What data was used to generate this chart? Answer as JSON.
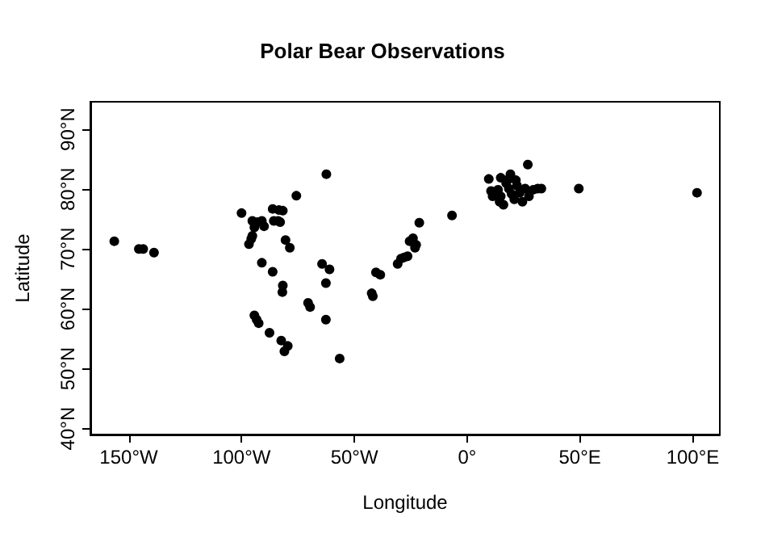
{
  "chart_data": {
    "type": "scatter",
    "title": "Polar Bear Observations",
    "xlabel": "Longitude",
    "ylabel": "Latitude",
    "marker": "circle",
    "grid": false,
    "xlim": [
      -167,
      112
    ],
    "ylim": [
      39,
      94.6
    ],
    "xticks": [
      {
        "value": -150,
        "label": "150°W"
      },
      {
        "value": -100,
        "label": "100°W"
      },
      {
        "value": -50,
        "label": "50°W"
      },
      {
        "value": 0,
        "label": "0°"
      },
      {
        "value": 50,
        "label": "50°E"
      },
      {
        "value": 100,
        "label": "100°E"
      }
    ],
    "yticks": [
      {
        "value": 40,
        "label": "40°N"
      },
      {
        "value": 50,
        "label": "50°N"
      },
      {
        "value": 60,
        "label": "60°N"
      },
      {
        "value": 70,
        "label": "70°N"
      },
      {
        "value": 80,
        "label": "80°N"
      },
      {
        "value": 90,
        "label": "90°N"
      }
    ],
    "series": [
      {
        "color": "#000000",
        "x": [
          -156.4,
          -145.5,
          -143.6,
          -138.8,
          -100,
          -95.2,
          -92.9,
          -91,
          -90,
          -94.3,
          -86.2,
          -83.4,
          -81.7,
          -85.7,
          -83.8,
          -82.9,
          -95.2,
          -95.7,
          -96.7,
          -75.7,
          -62.4,
          -80.5,
          -78.6,
          -91,
          -86.2,
          -81.7,
          -81.9,
          -64.3,
          -61,
          -62.6,
          -70.5,
          -69.6,
          -62.6,
          -94.3,
          -93.3,
          -92.4,
          -87.6,
          -82.4,
          -79.5,
          -81,
          -56.5,
          -40.4,
          -38.5,
          -42.3,
          -41.8,
          -30.8,
          -29.3,
          -27.9,
          -26.4,
          -25.5,
          -24,
          -23.1,
          -22.6,
          -21.2,
          -6.7,
          9.6,
          14.9,
          19.2,
          26.9,
          49.5,
          101.9,
          10.6,
          13.7,
          14.9,
          14.4,
          16.1,
          17.3,
          18.5,
          19.7,
          20.9,
          22.1,
          23.3,
          24.5,
          25.7,
          27.4,
          29.3,
          31.3,
          32.9,
          11.3,
          18.5,
          21.6
        ],
        "values": [
          71.3,
          70,
          70,
          69.4,
          76,
          74.7,
          74.5,
          74.7,
          73.8,
          73.6,
          76.7,
          76.5,
          76.4,
          74.7,
          74.7,
          74.5,
          72.2,
          71.7,
          70.8,
          78.9,
          82.5,
          71.5,
          70.2,
          67.7,
          66.2,
          63.9,
          62.8,
          67.5,
          66.6,
          64.3,
          61,
          60.3,
          58.2,
          58.9,
          58.2,
          57.6,
          56,
          54.7,
          53.8,
          52.9,
          51.7,
          66.1,
          65.7,
          62.6,
          62.1,
          67.5,
          68.4,
          68.6,
          68.8,
          71.3,
          71.8,
          70.2,
          70.7,
          74.4,
          75.6,
          81.7,
          81.9,
          82.5,
          84.1,
          80.1,
          79.4,
          79.7,
          79.9,
          78.8,
          77.9,
          77.4,
          81,
          80.1,
          79.2,
          78.3,
          80.6,
          79.4,
          77.9,
          80.1,
          78.8,
          79.9,
          80.1,
          80.1,
          78.8,
          81.7,
          81.5
        ]
      }
    ]
  }
}
